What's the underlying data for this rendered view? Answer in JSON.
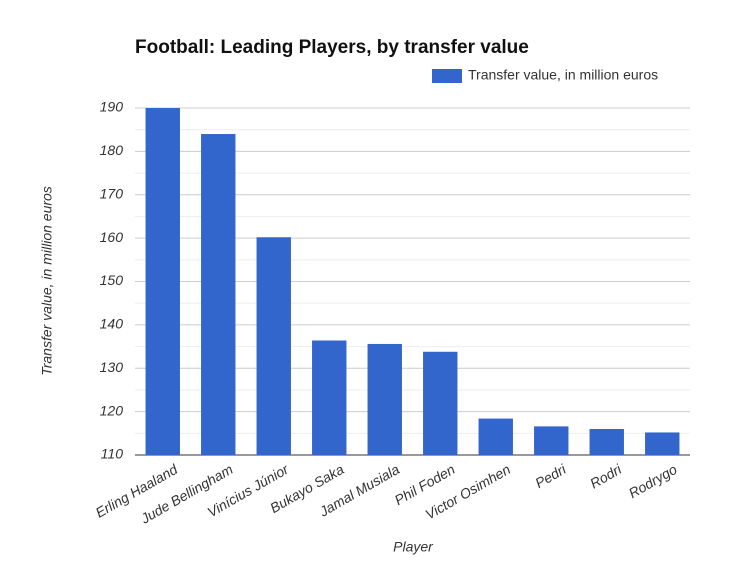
{
  "chart_data": {
    "type": "bar",
    "title": "Football: Leading Players, by transfer value",
    "x_label": "Player",
    "y_label": "Transfer value, in million euros",
    "categories": [
      "Erling Haaland",
      "Jude Bellingham",
      "Vinícius Júnior",
      "Bukayo Saka",
      "Jamal Musiala",
      "Phil Foden",
      "Victor Osimhen",
      "Pedri",
      "Rodri",
      "Rodrygo"
    ],
    "series": [
      {
        "name": "Transfer value, in million euros",
        "color": "#3366cc",
        "values": [
          190,
          184,
          160.2,
          136.4,
          135.6,
          133.8,
          118.4,
          116.6,
          116,
          115.2
        ]
      }
    ],
    "ylim": [
      110,
      190
    ],
    "yticks": [
      110,
      120,
      130,
      140,
      150,
      160,
      170,
      180,
      190
    ],
    "minor_yticks": [
      115,
      125,
      135,
      145,
      155,
      165,
      175,
      185
    ],
    "grid": true,
    "legend": "top-right"
  }
}
